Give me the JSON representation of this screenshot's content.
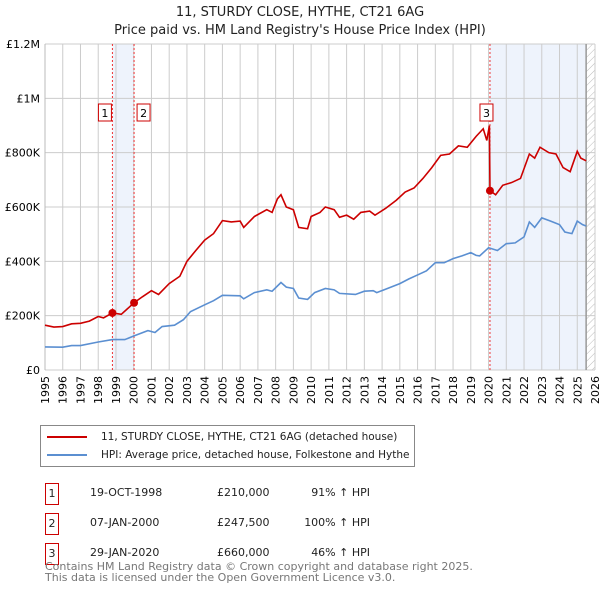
{
  "chart_data": {
    "type": "line",
    "title": "11, STURDY CLOSE, HYTHE, CT21 6AG",
    "subtitle": "Price paid vs. HM Land Registry's House Price Index (HPI)",
    "xlim": [
      1995,
      2026
    ],
    "ylim": [
      0,
      1200000
    ],
    "y_ticks": [
      {
        "v": 0,
        "label": "£0"
      },
      {
        "v": 200000,
        "label": "£200K"
      },
      {
        "v": 400000,
        "label": "£400K"
      },
      {
        "v": 600000,
        "label": "£600K"
      },
      {
        "v": 800000,
        "label": "£800K"
      },
      {
        "v": 1000000,
        "label": "£1M"
      },
      {
        "v": 1200000,
        "label": "£1.2M"
      }
    ],
    "x_ticks": [
      "1995",
      "1996",
      "1997",
      "1998",
      "1999",
      "2000",
      "2001",
      "2002",
      "2003",
      "2004",
      "2005",
      "2006",
      "2007",
      "2008",
      "2009",
      "2010",
      "2011",
      "2012",
      "2013",
      "2014",
      "2015",
      "2016",
      "2017",
      "2018",
      "2019",
      "2020",
      "2021",
      "2022",
      "2023",
      "2024",
      "2025",
      "2026"
    ],
    "grid": true,
    "series": [
      {
        "name": "11, STURDY CLOSE, HYTHE, CT21 6AG (detached house)",
        "color": "#cc0000",
        "points": [
          [
            1995,
            165000
          ],
          [
            1995.5,
            158000
          ],
          [
            1996,
            160000
          ],
          [
            1996.5,
            170000
          ],
          [
            1997,
            172000
          ],
          [
            1997.5,
            180000
          ],
          [
            1998,
            197000
          ],
          [
            1998.3,
            192000
          ],
          [
            1998.8,
            210000
          ],
          [
            1999.3,
            205000
          ],
          [
            2000.02,
            247500
          ],
          [
            2000.5,
            270000
          ],
          [
            2001,
            292000
          ],
          [
            2001.4,
            278000
          ],
          [
            2002,
            318000
          ],
          [
            2002.6,
            345000
          ],
          [
            2003,
            400000
          ],
          [
            2003.5,
            440000
          ],
          [
            2004,
            478000
          ],
          [
            2004.5,
            502000
          ],
          [
            2005,
            550000
          ],
          [
            2005.5,
            545000
          ],
          [
            2006,
            548000
          ],
          [
            2006.2,
            525000
          ],
          [
            2006.8,
            565000
          ],
          [
            2007.5,
            590000
          ],
          [
            2007.8,
            580000
          ],
          [
            2008.1,
            630000
          ],
          [
            2008.3,
            645000
          ],
          [
            2008.6,
            600000
          ],
          [
            2009,
            590000
          ],
          [
            2009.3,
            525000
          ],
          [
            2009.8,
            520000
          ],
          [
            2010,
            565000
          ],
          [
            2010.5,
            580000
          ],
          [
            2010.8,
            600000
          ],
          [
            2011.3,
            590000
          ],
          [
            2011.6,
            562000
          ],
          [
            2012,
            570000
          ],
          [
            2012.4,
            555000
          ],
          [
            2012.8,
            580000
          ],
          [
            2013.3,
            585000
          ],
          [
            2013.6,
            570000
          ],
          [
            2014.2,
            595000
          ],
          [
            2014.8,
            625000
          ],
          [
            2015.3,
            655000
          ],
          [
            2015.8,
            670000
          ],
          [
            2016.3,
            705000
          ],
          [
            2016.8,
            745000
          ],
          [
            2017.3,
            790000
          ],
          [
            2017.8,
            795000
          ],
          [
            2018.3,
            825000
          ],
          [
            2018.8,
            820000
          ],
          [
            2019.3,
            860000
          ],
          [
            2019.7,
            888000
          ],
          [
            2019.9,
            845000
          ],
          [
            2020.05,
            900000
          ],
          [
            2020.08,
            660000
          ],
          [
            2020.4,
            645000
          ],
          [
            2020.8,
            680000
          ],
          [
            2021.3,
            690000
          ],
          [
            2021.8,
            705000
          ],
          [
            2022.3,
            795000
          ],
          [
            2022.6,
            780000
          ],
          [
            2022.9,
            820000
          ],
          [
            2023.4,
            800000
          ],
          [
            2023.8,
            795000
          ],
          [
            2024.2,
            745000
          ],
          [
            2024.6,
            730000
          ],
          [
            2025,
            805000
          ],
          [
            2025.2,
            780000
          ],
          [
            2025.5,
            770000
          ]
        ]
      },
      {
        "name": "HPI: Average price, detached house, Folkestone and Hythe",
        "color": "#5b8fd1",
        "points": [
          [
            1995,
            85000
          ],
          [
            1996,
            84000
          ],
          [
            1996.5,
            90000
          ],
          [
            1997,
            90000
          ],
          [
            1998,
            103000
          ],
          [
            1998.8,
            112000
          ],
          [
            1999.5,
            112000
          ],
          [
            2000,
            125000
          ],
          [
            2000.8,
            145000
          ],
          [
            2001.2,
            138000
          ],
          [
            2001.6,
            160000
          ],
          [
            2002.3,
            165000
          ],
          [
            2002.8,
            185000
          ],
          [
            2003.2,
            215000
          ],
          [
            2004,
            240000
          ],
          [
            2004.5,
            255000
          ],
          [
            2005,
            275000
          ],
          [
            2006,
            273000
          ],
          [
            2006.2,
            262000
          ],
          [
            2006.8,
            285000
          ],
          [
            2007.5,
            295000
          ],
          [
            2007.8,
            290000
          ],
          [
            2008.3,
            322000
          ],
          [
            2008.6,
            305000
          ],
          [
            2009,
            300000
          ],
          [
            2009.3,
            265000
          ],
          [
            2009.8,
            260000
          ],
          [
            2010.2,
            285000
          ],
          [
            2010.8,
            300000
          ],
          [
            2011.3,
            295000
          ],
          [
            2011.6,
            282000
          ],
          [
            2012.5,
            278000
          ],
          [
            2013,
            290000
          ],
          [
            2013.5,
            292000
          ],
          [
            2013.7,
            285000
          ],
          [
            2014.3,
            300000
          ],
          [
            2015,
            318000
          ],
          [
            2015.5,
            335000
          ],
          [
            2016,
            350000
          ],
          [
            2016.5,
            365000
          ],
          [
            2017,
            395000
          ],
          [
            2017.5,
            395000
          ],
          [
            2018,
            410000
          ],
          [
            2018.5,
            420000
          ],
          [
            2019,
            432000
          ],
          [
            2019.3,
            422000
          ],
          [
            2019.5,
            420000
          ],
          [
            2020,
            450000
          ],
          [
            2020.5,
            440000
          ],
          [
            2021,
            465000
          ],
          [
            2021.5,
            468000
          ],
          [
            2022,
            490000
          ],
          [
            2022.3,
            545000
          ],
          [
            2022.6,
            525000
          ],
          [
            2023,
            560000
          ],
          [
            2023.5,
            548000
          ],
          [
            2024,
            535000
          ],
          [
            2024.3,
            508000
          ],
          [
            2024.7,
            502000
          ],
          [
            2025,
            548000
          ],
          [
            2025.3,
            535000
          ],
          [
            2025.5,
            530000
          ]
        ]
      }
    ],
    "sales": [
      {
        "n": "1",
        "x": 1998.8,
        "price": 210000,
        "date": "19-OCT-1998",
        "price_label": "£210,000",
        "hpi": "91% ↑ HPI"
      },
      {
        "n": "2",
        "x": 2000.02,
        "price": 247500,
        "date": "07-JAN-2000",
        "price_label": "£247,500",
        "hpi": "100% ↑ HPI"
      },
      {
        "n": "3",
        "x": 2020.08,
        "price": 660000,
        "date": "29-JAN-2020",
        "price_label": "£660,000",
        "hpi": "46% ↑ HPI"
      }
    ],
    "data_end": 2025.5
  },
  "legend": {
    "red": "11, STURDY CLOSE, HYTHE, CT21 6AG (detached house)",
    "blue": "HPI: Average price, detached house, Folkestone and Hythe"
  },
  "footer": {
    "line1": "Contains HM Land Registry data © Crown copyright and database right 2025.",
    "line2": "This data is licensed under the Open Government Licence v3.0."
  }
}
